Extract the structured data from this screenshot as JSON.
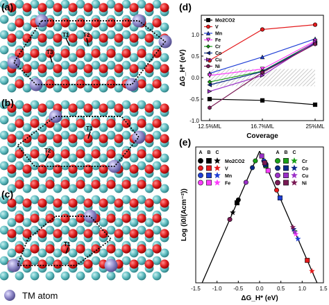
{
  "figure": {
    "panels": [
      {
        "letter": "(a)"
      },
      {
        "letter": "(b)"
      },
      {
        "letter": "(c)"
      },
      {
        "letter": "(d)"
      },
      {
        "letter": "(e)"
      }
    ],
    "legend_text": "TM atom",
    "site_labels": [
      {
        "text": "T1"
      },
      {
        "text": "T2"
      },
      {
        "text": "T3"
      },
      {
        "text": "T1"
      },
      {
        "text": "T2"
      },
      {
        "text": "T1"
      }
    ]
  },
  "colors": {
    "oxygen_red": "#e02020",
    "carbon_teal": "#5fbcc0",
    "metal_purple": "#8e88c8",
    "Mo2CO2": "#000000",
    "V": "#e41a1c",
    "Mn": "#1f3fd6",
    "Fe": "#ff3dff",
    "Cr": "#18a018",
    "Co": "#0a2a8a",
    "Cu": "#9b30c8",
    "Ni": "#7a1a55"
  },
  "chart_data": [
    {
      "type": "line",
      "panel": "(d)",
      "categories": [
        "12.5%ML",
        "16.7%ML",
        "25%ML"
      ],
      "xlabel": "Coverage",
      "ylabel": "ΔG_H* (eV)",
      "ylim": [
        -1.0,
        1.45
      ],
      "yticks": [
        "-1.0",
        "-0.5",
        "0.0",
        "0.5",
        "1.0"
      ],
      "legend_position": "top-left",
      "shaded_band": [
        -0.2,
        0.2
      ],
      "series": [
        {
          "name": "Mo2CO2",
          "marker": "square",
          "values": [
            -0.5,
            -0.53,
            -0.63
          ]
        },
        {
          "name": "V",
          "marker": "circle",
          "values": [
            0.4,
            1.12,
            1.23
          ]
        },
        {
          "name": "Mn",
          "marker": "triangle-up",
          "values": [
            0.1,
            0.48,
            0.9
          ]
        },
        {
          "name": "Fe",
          "marker": "triangle-down",
          "values": [
            0.05,
            0.2,
            0.85
          ]
        },
        {
          "name": "Cr",
          "marker": "diamond",
          "values": [
            -0.1,
            0.15,
            0.82
          ]
        },
        {
          "name": "Co",
          "marker": "triangle-left",
          "values": [
            -0.17,
            0.14,
            0.8
          ]
        },
        {
          "name": "Cu",
          "marker": "triangle-right",
          "values": [
            -0.32,
            0.05,
            0.83
          ]
        },
        {
          "name": "Ni",
          "marker": "hexagon",
          "values": [
            -0.7,
            0.12,
            0.78
          ]
        }
      ]
    },
    {
      "type": "scatter",
      "panel": "(e)",
      "xlabel": "ΔG_H* (eV)",
      "ylabel": "Log (i0/(Acm⁻²))",
      "xlim": [
        -1.5,
        1.5
      ],
      "xticks": [
        "-1.5",
        "-1.0",
        "-0.5",
        "0.0",
        "0.5",
        "1.0",
        "1.5"
      ],
      "legend_columns": [
        "A",
        "B",
        "C"
      ],
      "legend_markers": [
        "circle",
        "square",
        "star"
      ],
      "legend_entries": [
        "Mo2CO2",
        "V",
        "Mn",
        "Fe",
        "Cr",
        "Co",
        "Cu",
        "Ni"
      ],
      "volcano": {
        "peak_x": 0.0,
        "slope": "linear"
      },
      "points": [
        {
          "name": "Mo2CO2",
          "marker": "circle",
          "x": -0.5
        },
        {
          "name": "Mo2CO2",
          "marker": "square",
          "x": -0.53
        },
        {
          "name": "Mo2CO2",
          "marker": "star",
          "x": -0.63
        },
        {
          "name": "V",
          "marker": "circle",
          "x": 0.4
        },
        {
          "name": "V",
          "marker": "square",
          "x": 1.12
        },
        {
          "name": "V",
          "marker": "star",
          "x": 1.23
        },
        {
          "name": "Mn",
          "marker": "circle",
          "x": 0.1
        },
        {
          "name": "Mn",
          "marker": "square",
          "x": 0.48
        },
        {
          "name": "Mn",
          "marker": "star",
          "x": 0.9
        },
        {
          "name": "Fe",
          "marker": "circle",
          "x": 0.05
        },
        {
          "name": "Fe",
          "marker": "square",
          "x": 0.2
        },
        {
          "name": "Fe",
          "marker": "star",
          "x": 0.85
        },
        {
          "name": "Cr",
          "marker": "circle",
          "x": -0.1
        },
        {
          "name": "Cr",
          "marker": "square",
          "x": 0.15
        },
        {
          "name": "Cr",
          "marker": "star",
          "x": 0.82
        },
        {
          "name": "Co",
          "marker": "circle",
          "x": -0.17
        },
        {
          "name": "Co",
          "marker": "square",
          "x": 0.14
        },
        {
          "name": "Co",
          "marker": "star",
          "x": 0.8
        },
        {
          "name": "Cu",
          "marker": "circle",
          "x": -0.32
        },
        {
          "name": "Cu",
          "marker": "square",
          "x": 0.05
        },
        {
          "name": "Cu",
          "marker": "star",
          "x": 0.83
        },
        {
          "name": "Ni",
          "marker": "circle",
          "x": -0.7
        },
        {
          "name": "Ni",
          "marker": "square",
          "x": 0.12
        },
        {
          "name": "Ni",
          "marker": "star",
          "x": 0.78
        }
      ]
    }
  ]
}
